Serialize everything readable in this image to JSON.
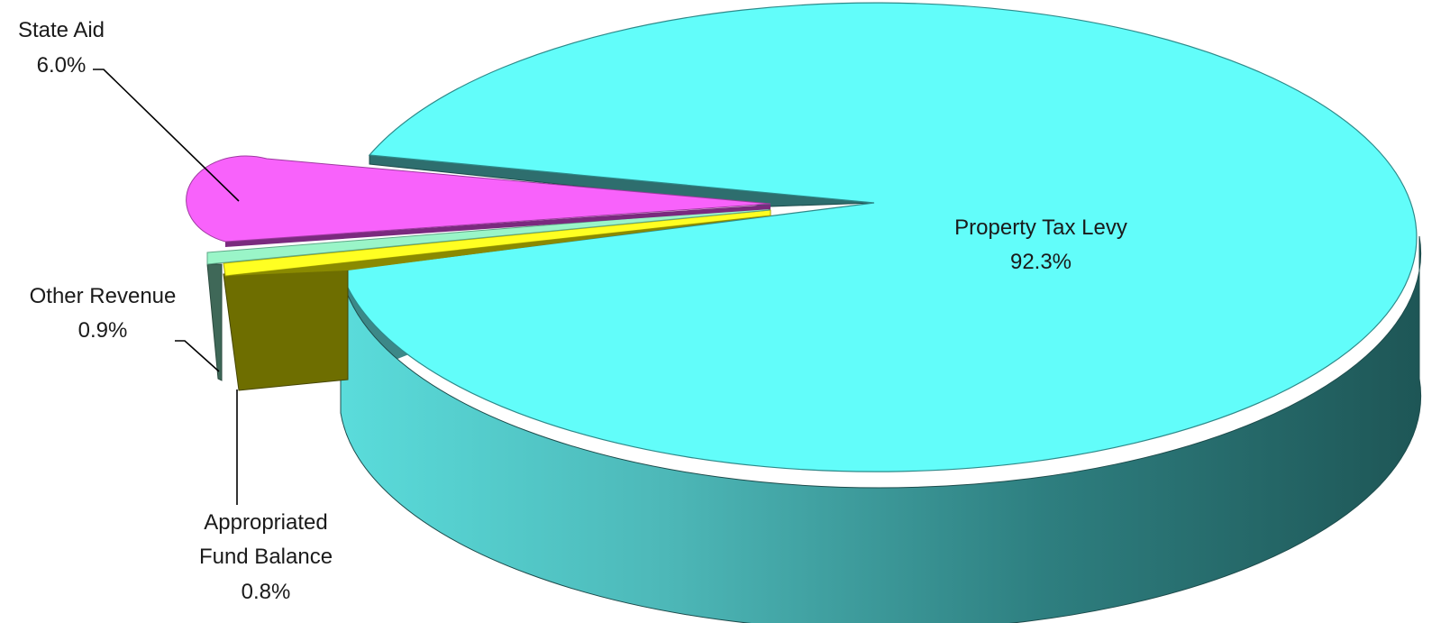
{
  "chart_data": {
    "type": "pie",
    "title": "",
    "slices": [
      {
        "name": "Property Tax Levy",
        "value": 92.3,
        "label": "92.3%",
        "color": "#62FDFA"
      },
      {
        "name": "State Aid",
        "value": 6.0,
        "label": "6.0%",
        "color": "#F862FB"
      },
      {
        "name": "Other Revenue",
        "value": 0.9,
        "label": "0.9%",
        "color": "#9AF5C8"
      },
      {
        "name": "Appropriated Fund Balance",
        "value": 0.8,
        "label": "0.8%",
        "color": "#FFFF22"
      }
    ],
    "legend": "none",
    "style": "3d-exploded"
  },
  "labels": {
    "property_tax_name": "Property Tax Levy",
    "property_tax_value": "92.3%",
    "state_aid_name": "State Aid",
    "state_aid_value": "6.0%",
    "other_revenue_name": "Other Revenue",
    "other_revenue_value": "0.9%",
    "fund_balance_name_1": "Appropriated",
    "fund_balance_name_2": "Fund Balance",
    "fund_balance_value": "0.8%"
  }
}
